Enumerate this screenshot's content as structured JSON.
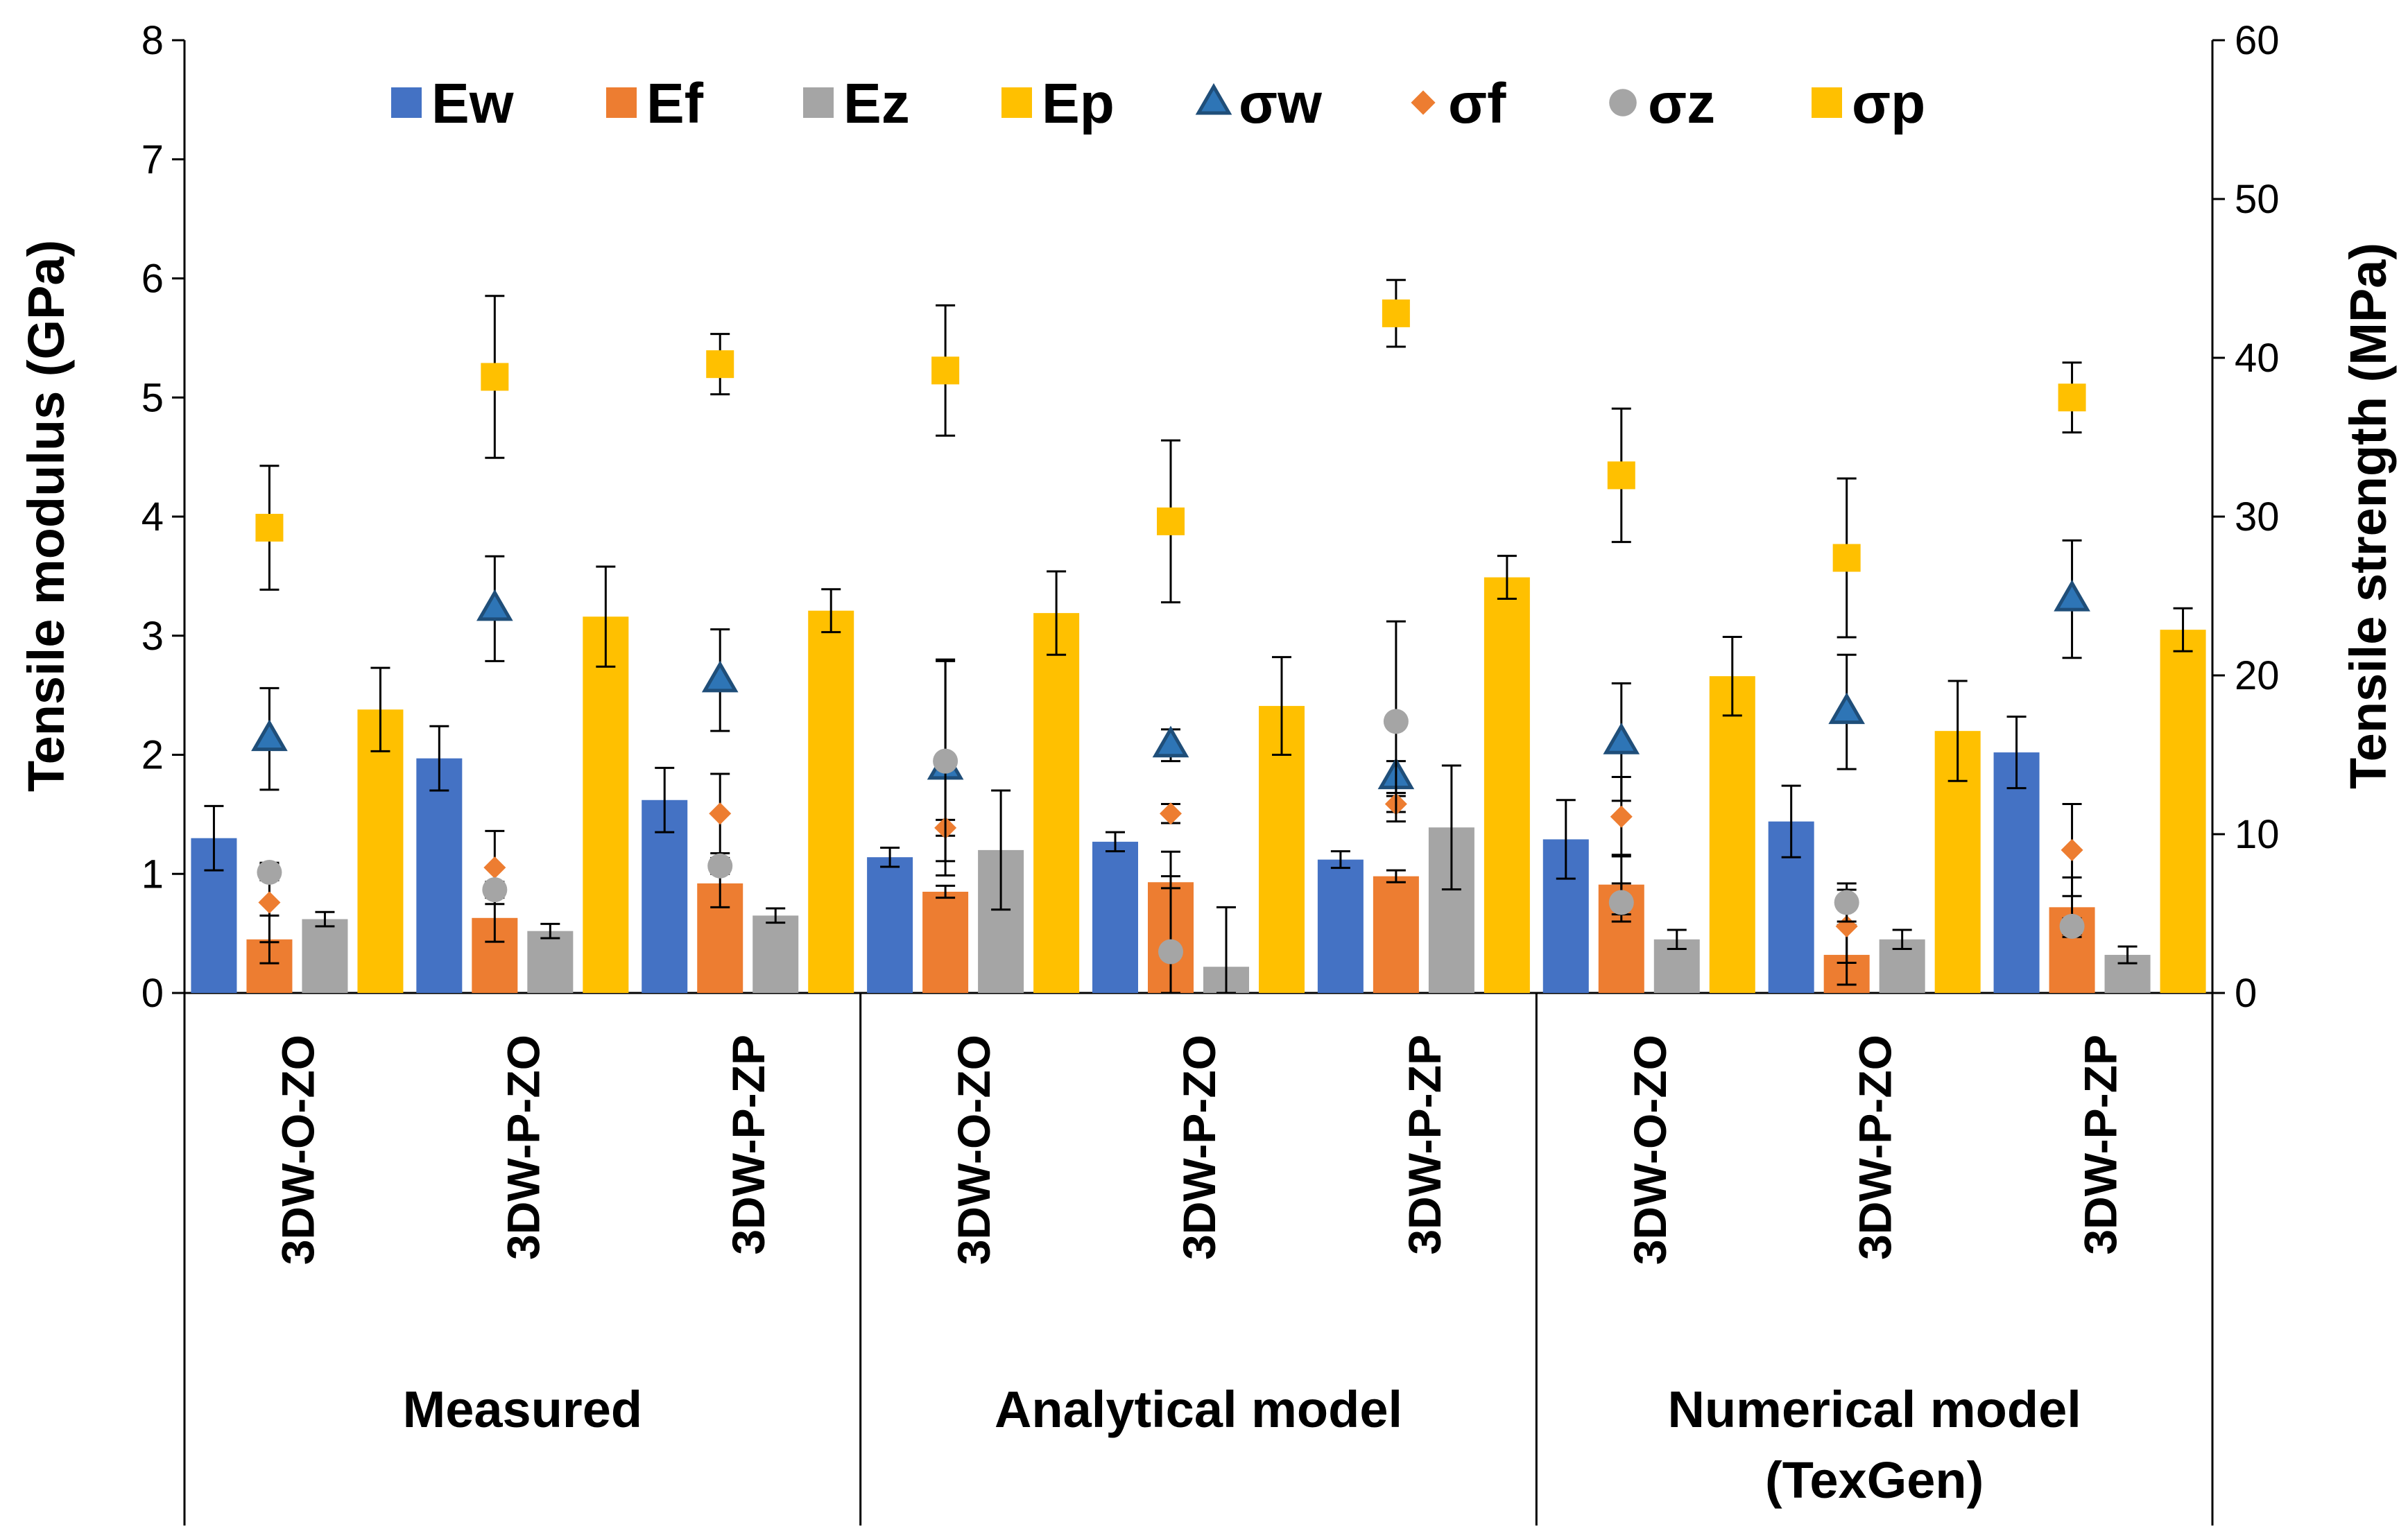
{
  "chart_data": {
    "type": "bar",
    "y_left": {
      "label": "Tensile modulus (GPa)",
      "ylim": [
        0,
        8
      ],
      "ticks": [
        "0",
        "1",
        "2",
        "3",
        "4",
        "5",
        "6",
        "7",
        "8"
      ]
    },
    "y_right": {
      "label": "Tensile strength (MPa)",
      "ylim": [
        0,
        60
      ],
      "ticks": [
        "0",
        "10",
        "20",
        "30",
        "40",
        "50",
        "60"
      ]
    },
    "categories": [
      "3DW-O-ZO",
      "3DW-P-ZO",
      "3DW-P-ZP",
      "3DW-O-ZO",
      "3DW-P-ZO",
      "3DW-P-ZP",
      "3DW-O-ZO",
      "3DW-P-ZO",
      "3DW-P-ZP"
    ],
    "groups": [
      {
        "label": "Measured",
        "label2": ""
      },
      {
        "label": "Analytical model",
        "label2": ""
      },
      {
        "label": "Numerical model",
        "label2": "(TexGen)"
      }
    ],
    "bar_series": [
      {
        "name": "Ew",
        "color": "#4472C4",
        "values": [
          1.3,
          1.97,
          1.62,
          1.14,
          1.27,
          1.12,
          1.29,
          1.44,
          2.02
        ],
        "errors": [
          0.27,
          0.27,
          0.27,
          0.08,
          0.08,
          0.07,
          0.33,
          0.3,
          0.3
        ]
      },
      {
        "name": "Ef",
        "color": "#ED7D31",
        "values": [
          0.45,
          0.63,
          0.92,
          0.85,
          0.93,
          0.98,
          0.91,
          0.32,
          0.72
        ],
        "errors": [
          0.2,
          0.2,
          0.2,
          0.05,
          0.05,
          0.05,
          0.25,
          0.25,
          0.25
        ]
      },
      {
        "name": "Ez",
        "color": "#A5A5A5",
        "values": [
          0.62,
          0.52,
          0.65,
          1.2,
          0.22,
          1.39,
          0.45,
          0.45,
          0.32
        ],
        "errors": [
          0.06,
          0.06,
          0.06,
          0.5,
          0.5,
          0.52,
          0.08,
          0.08,
          0.07
        ]
      },
      {
        "name": "Ep",
        "color": "#FFC000",
        "values": [
          2.38,
          3.16,
          3.21,
          3.19,
          2.41,
          3.49,
          2.66,
          2.2,
          3.05
        ],
        "errors": [
          0.35,
          0.42,
          0.18,
          0.35,
          0.41,
          0.18,
          0.33,
          0.42,
          0.18
        ]
      }
    ],
    "marker_series": [
      {
        "name": "σw",
        "color": "#2E75B6",
        "shape": "triangle",
        "values": [
          16.0,
          24.2,
          19.7,
          14.2,
          15.6,
          13.6,
          15.8,
          17.7,
          24.8
        ],
        "errors": [
          3.2,
          3.3,
          3.2,
          6.8,
          1.0,
          1.0,
          3.7,
          3.6,
          3.7
        ]
      },
      {
        "name": "σf",
        "color": "#ED7D31",
        "shape": "diamond",
        "values": [
          5.7,
          7.9,
          11.3,
          10.4,
          11.3,
          11.9,
          11.1,
          4.2,
          9.0
        ],
        "errors": [
          2.5,
          2.3,
          2.5,
          0.5,
          0.6,
          0.5,
          2.5,
          2.3,
          2.9
        ]
      },
      {
        "name": "σz",
        "color": "#A5A5A5",
        "shape": "circle",
        "values": [
          7.6,
          6.5,
          8.0,
          14.6,
          2.6,
          17.1,
          5.7,
          5.7,
          4.2
        ],
        "errors": [
          0.5,
          0.5,
          0.5,
          6.3,
          6.3,
          6.3,
          1.2,
          1.2,
          0.5
        ]
      },
      {
        "name": "σp",
        "color": "#FFC000",
        "shape": "square",
        "values": [
          29.3,
          38.8,
          39.6,
          39.2,
          29.7,
          42.8,
          32.6,
          27.4,
          37.5
        ],
        "errors": [
          3.9,
          5.1,
          1.9,
          4.1,
          5.1,
          2.1,
          4.2,
          5.0,
          2.2
        ]
      }
    ]
  }
}
